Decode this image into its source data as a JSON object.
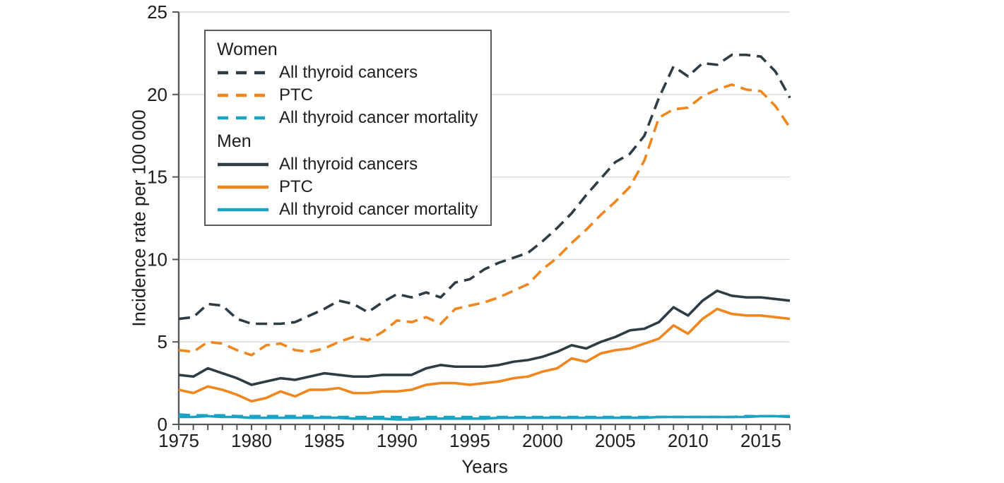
{
  "figure": {
    "background": "#ffffff",
    "xlabel": "Years",
    "ylabel": "Incidence rate per 100 000"
  },
  "legend": {
    "groups": [
      {
        "label": "Women",
        "item_series_indexes": [
          0,
          1,
          2
        ]
      },
      {
        "label": "Men",
        "item_series_indexes": [
          3,
          4,
          5
        ]
      }
    ]
  },
  "chart_data": {
    "type": "line",
    "title": "",
    "xlabel": "Years",
    "ylabel": "Incidence rate per 100 000",
    "xlim": [
      1975,
      2017
    ],
    "ylim": [
      0,
      25
    ],
    "y_ticks": [
      0,
      5,
      10,
      15,
      20,
      25
    ],
    "x_major_ticks": [
      1975,
      1980,
      1985,
      1990,
      1995,
      2000,
      2005,
      2010,
      2015
    ],
    "x_minor_tick_interval": 1,
    "grid": "horizontal",
    "legend_position": "top-left",
    "colors": {
      "dark": "#2e3d45",
      "orange": "#f0861e",
      "teal": "#1ba3c4",
      "grid": "#d9d9d9",
      "axis": "#55575b",
      "text": "#1e1e1e"
    },
    "years": [
      1975,
      1976,
      1977,
      1978,
      1979,
      1980,
      1981,
      1982,
      1983,
      1984,
      1985,
      1986,
      1987,
      1988,
      1989,
      1990,
      1991,
      1992,
      1993,
      1994,
      1995,
      1996,
      1997,
      1998,
      1999,
      2000,
      2001,
      2002,
      2003,
      2004,
      2005,
      2006,
      2007,
      2008,
      2009,
      2010,
      2011,
      2012,
      2013,
      2014,
      2015,
      2016,
      2017
    ],
    "series": [
      {
        "group": "Women",
        "name": "All thyroid cancers",
        "style": "dashed",
        "color": "#2e3d45",
        "values": [
          6.4,
          6.5,
          7.3,
          7.2,
          6.4,
          6.1,
          6.1,
          6.1,
          6.2,
          6.6,
          7.0,
          7.5,
          7.3,
          6.8,
          7.4,
          7.9,
          7.7,
          8.0,
          7.7,
          8.6,
          8.8,
          9.4,
          9.8,
          10.1,
          10.4,
          11.1,
          11.9,
          12.8,
          13.9,
          14.9,
          15.9,
          16.4,
          17.5,
          19.8,
          21.7,
          21.1,
          21.9,
          21.8,
          22.4,
          22.4,
          22.3,
          21.4,
          19.8
        ]
      },
      {
        "group": "Women",
        "name": "PTC",
        "style": "dashed",
        "color": "#f0861e",
        "values": [
          4.5,
          4.4,
          5.0,
          4.9,
          4.5,
          4.2,
          4.8,
          4.9,
          4.5,
          4.4,
          4.6,
          5.0,
          5.3,
          5.1,
          5.6,
          6.3,
          6.2,
          6.5,
          6.1,
          7.0,
          7.2,
          7.4,
          7.7,
          8.1,
          8.5,
          9.4,
          10.1,
          11.0,
          11.8,
          12.7,
          13.5,
          14.4,
          16.0,
          18.6,
          19.1,
          19.2,
          19.9,
          20.3,
          20.6,
          20.3,
          20.2,
          19.3,
          18.0
        ]
      },
      {
        "group": "Women",
        "name": "All thyroid cancer mortality",
        "style": "dashed",
        "color": "#1ba3c4",
        "values": [
          0.6,
          0.55,
          0.55,
          0.55,
          0.5,
          0.5,
          0.5,
          0.5,
          0.5,
          0.5,
          0.45,
          0.45,
          0.45,
          0.45,
          0.45,
          0.45,
          0.4,
          0.45,
          0.45,
          0.45,
          0.45,
          0.45,
          0.45,
          0.45,
          0.45,
          0.45,
          0.45,
          0.45,
          0.45,
          0.45,
          0.45,
          0.45,
          0.45,
          0.45,
          0.45,
          0.45,
          0.45,
          0.45,
          0.45,
          0.5,
          0.5,
          0.5,
          0.5
        ]
      },
      {
        "group": "Men",
        "name": "All thyroid cancers",
        "style": "solid",
        "color": "#2e3d45",
        "values": [
          3.0,
          2.9,
          3.4,
          3.1,
          2.8,
          2.4,
          2.6,
          2.8,
          2.7,
          2.9,
          3.1,
          3.0,
          2.9,
          2.9,
          3.0,
          3.0,
          3.0,
          3.4,
          3.6,
          3.5,
          3.5,
          3.5,
          3.6,
          3.8,
          3.9,
          4.1,
          4.4,
          4.8,
          4.6,
          5.0,
          5.3,
          5.7,
          5.8,
          6.2,
          7.1,
          6.6,
          7.5,
          8.1,
          7.8,
          7.7,
          7.7,
          7.6,
          7.5
        ]
      },
      {
        "group": "Men",
        "name": "PTC",
        "style": "solid",
        "color": "#f0861e",
        "values": [
          2.1,
          1.9,
          2.3,
          2.1,
          1.8,
          1.4,
          1.6,
          2.0,
          1.7,
          2.1,
          2.1,
          2.2,
          1.9,
          1.9,
          2.0,
          2.0,
          2.1,
          2.4,
          2.5,
          2.5,
          2.4,
          2.5,
          2.6,
          2.8,
          2.9,
          3.2,
          3.4,
          4.0,
          3.8,
          4.3,
          4.5,
          4.6,
          4.9,
          5.2,
          6.0,
          5.5,
          6.4,
          7.0,
          6.7,
          6.6,
          6.6,
          6.5,
          6.4
        ]
      },
      {
        "group": "Men",
        "name": "All thyroid cancer mortality",
        "style": "solid",
        "color": "#1ba3c4",
        "values": [
          0.45,
          0.45,
          0.5,
          0.45,
          0.45,
          0.4,
          0.4,
          0.4,
          0.4,
          0.4,
          0.4,
          0.4,
          0.35,
          0.35,
          0.35,
          0.3,
          0.3,
          0.35,
          0.35,
          0.35,
          0.35,
          0.35,
          0.4,
          0.4,
          0.4,
          0.4,
          0.4,
          0.4,
          0.4,
          0.4,
          0.4,
          0.4,
          0.4,
          0.45,
          0.45,
          0.45,
          0.45,
          0.45,
          0.45,
          0.45,
          0.5,
          0.5,
          0.45
        ]
      }
    ]
  }
}
